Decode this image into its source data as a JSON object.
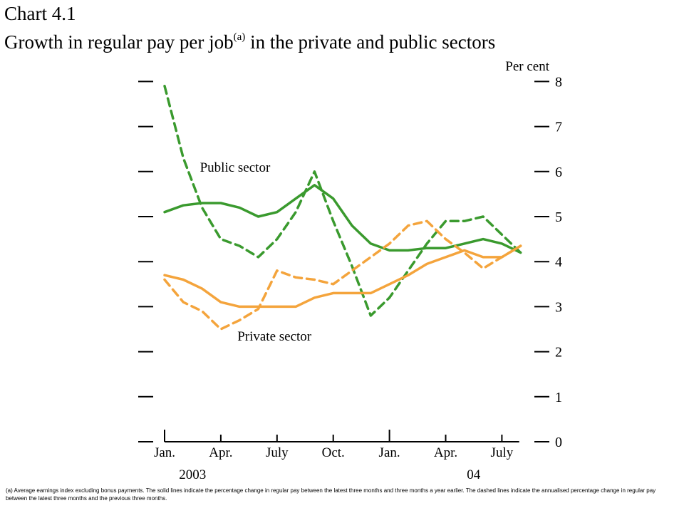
{
  "title": {
    "line1": "Chart 4.1",
    "line2_main": "Growth in regular pay per job",
    "line2_sup": "(a)",
    "line2_tail": " in the private and public sectors"
  },
  "footnote": "(a)  Average earnings index excluding bonus payments. The solid lines indicate the percentage change in regular pay between the latest three months and three months a year earlier. The dashed lines indicate the annualised percentage change in regular pay between the latest three months and the previous three months.",
  "colors": {
    "public": "#3a9a2e",
    "private": "#f4a43c",
    "axis": "#000000"
  },
  "chart_data": {
    "type": "line",
    "title": "Growth in regular pay per job(a) in the private and public sectors",
    "ylabel": "Per cent",
    "ylim": [
      0,
      8
    ],
    "yticks": [
      0,
      1,
      2,
      3,
      4,
      5,
      6,
      7,
      8
    ],
    "x": [
      "2003-01",
      "2003-02",
      "2003-03",
      "2003-04",
      "2003-05",
      "2003-06",
      "2003-07",
      "2003-08",
      "2003-09",
      "2003-10",
      "2003-11",
      "2003-12",
      "2004-01",
      "2004-02",
      "2004-03",
      "2004-04",
      "2004-05",
      "2004-06",
      "2004-07",
      "2004-08"
    ],
    "xtick_labels": [
      {
        "x": "2003-01",
        "label": "Jan."
      },
      {
        "x": "2003-04",
        "label": "Apr."
      },
      {
        "x": "2003-07",
        "label": "July"
      },
      {
        "x": "2003-10",
        "label": "Oct."
      },
      {
        "x": "2004-01",
        "label": "Jan."
      },
      {
        "x": "2004-04",
        "label": "Apr."
      },
      {
        "x": "2004-07",
        "label": "July"
      }
    ],
    "year_labels": [
      {
        "x": "2003-02",
        "label": "2003"
      },
      {
        "x": "2004-05",
        "label": "04"
      }
    ],
    "series": [
      {
        "name": "Public sector",
        "style": "solid",
        "color": "#3a9a2e",
        "values": [
          5.1,
          5.25,
          5.3,
          5.3,
          5.2,
          5.0,
          5.1,
          5.4,
          5.7,
          5.4,
          4.8,
          4.4,
          4.25,
          4.25,
          4.3,
          4.3,
          4.4,
          4.5,
          4.4,
          4.2
        ]
      },
      {
        "series_label": "public-dashed",
        "style": "dashed",
        "color": "#3a9a2e",
        "values": [
          7.9,
          6.3,
          5.2,
          4.5,
          4.35,
          4.1,
          4.5,
          5.1,
          6.0,
          4.9,
          3.9,
          2.8,
          3.2,
          3.8,
          4.4,
          4.9,
          4.9,
          5.0,
          4.6,
          4.2
        ]
      },
      {
        "name": "Private sector",
        "style": "solid",
        "color": "#f4a43c",
        "values": [
          3.7,
          3.6,
          3.4,
          3.1,
          3.0,
          3.0,
          3.0,
          3.0,
          3.2,
          3.3,
          3.3,
          3.3,
          3.5,
          3.7,
          3.95,
          4.1,
          4.25,
          4.1,
          4.1,
          4.35
        ]
      },
      {
        "series_label": "private-dashed",
        "style": "dashed",
        "color": "#f4a43c",
        "values": [
          3.6,
          3.1,
          2.9,
          2.5,
          2.7,
          2.95,
          3.8,
          3.65,
          3.6,
          3.5,
          3.8,
          4.1,
          4.4,
          4.8,
          4.9,
          4.5,
          4.2,
          3.85,
          4.1,
          4.35
        ]
      }
    ],
    "annotations": [
      {
        "text": "Public sector",
        "x": "2003-03",
        "y": 6.0
      },
      {
        "text": "Private sector",
        "x": "2003-05",
        "y": 2.25
      }
    ],
    "legend": "none",
    "grid": false
  }
}
